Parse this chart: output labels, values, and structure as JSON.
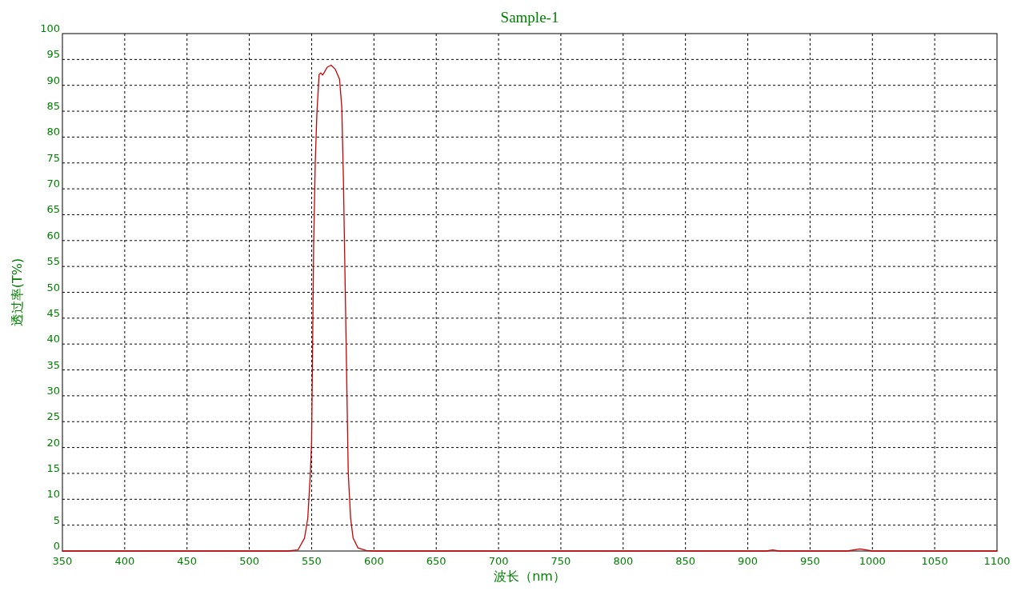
{
  "chart_data": {
    "type": "line",
    "title": "Sample-1",
    "xlabel": "波长（nm）",
    "ylabel": "透过率(T%)",
    "x": [
      350,
      500,
      531,
      539,
      544.3,
      546.9,
      549,
      550,
      550.8,
      551.6,
      552.9,
      554.2,
      556,
      557.3,
      558.9,
      560.4,
      562.5,
      565.6,
      569,
      572.4,
      574.2,
      575.5,
      576.8,
      578.1,
      579.4,
      581.3,
      583.3,
      587.2,
      593.8,
      600,
      700,
      915,
      920,
      925,
      980,
      990,
      1000,
      1100
    ],
    "series": [
      {
        "color": "#cc0000",
        "values": [
          0,
          0,
          0,
          0.2,
          2.5,
          6.3,
          15,
          21.4,
          40,
          59,
          75,
          84.5,
          92.1,
          92.4,
          92,
          92.6,
          93.5,
          93.9,
          93.1,
          91.2,
          85.8,
          71.9,
          53,
          34,
          15,
          6.3,
          2.5,
          0.6,
          0.1,
          0,
          0,
          0,
          0.2,
          0,
          0,
          0.4,
          0,
          0
        ]
      }
    ],
    "xlim": [
      350,
      1100
    ],
    "ylim": [
      0,
      100
    ],
    "xticks": [
      350,
      400,
      450,
      500,
      550,
      600,
      650,
      700,
      750,
      800,
      850,
      900,
      950,
      1000,
      1050,
      1100
    ],
    "yticks": [
      0,
      5,
      10,
      15,
      20,
      25,
      30,
      35,
      40,
      45,
      50,
      55,
      60,
      65,
      70,
      75,
      80,
      85,
      90,
      95,
      100
    ],
    "grid": true
  }
}
